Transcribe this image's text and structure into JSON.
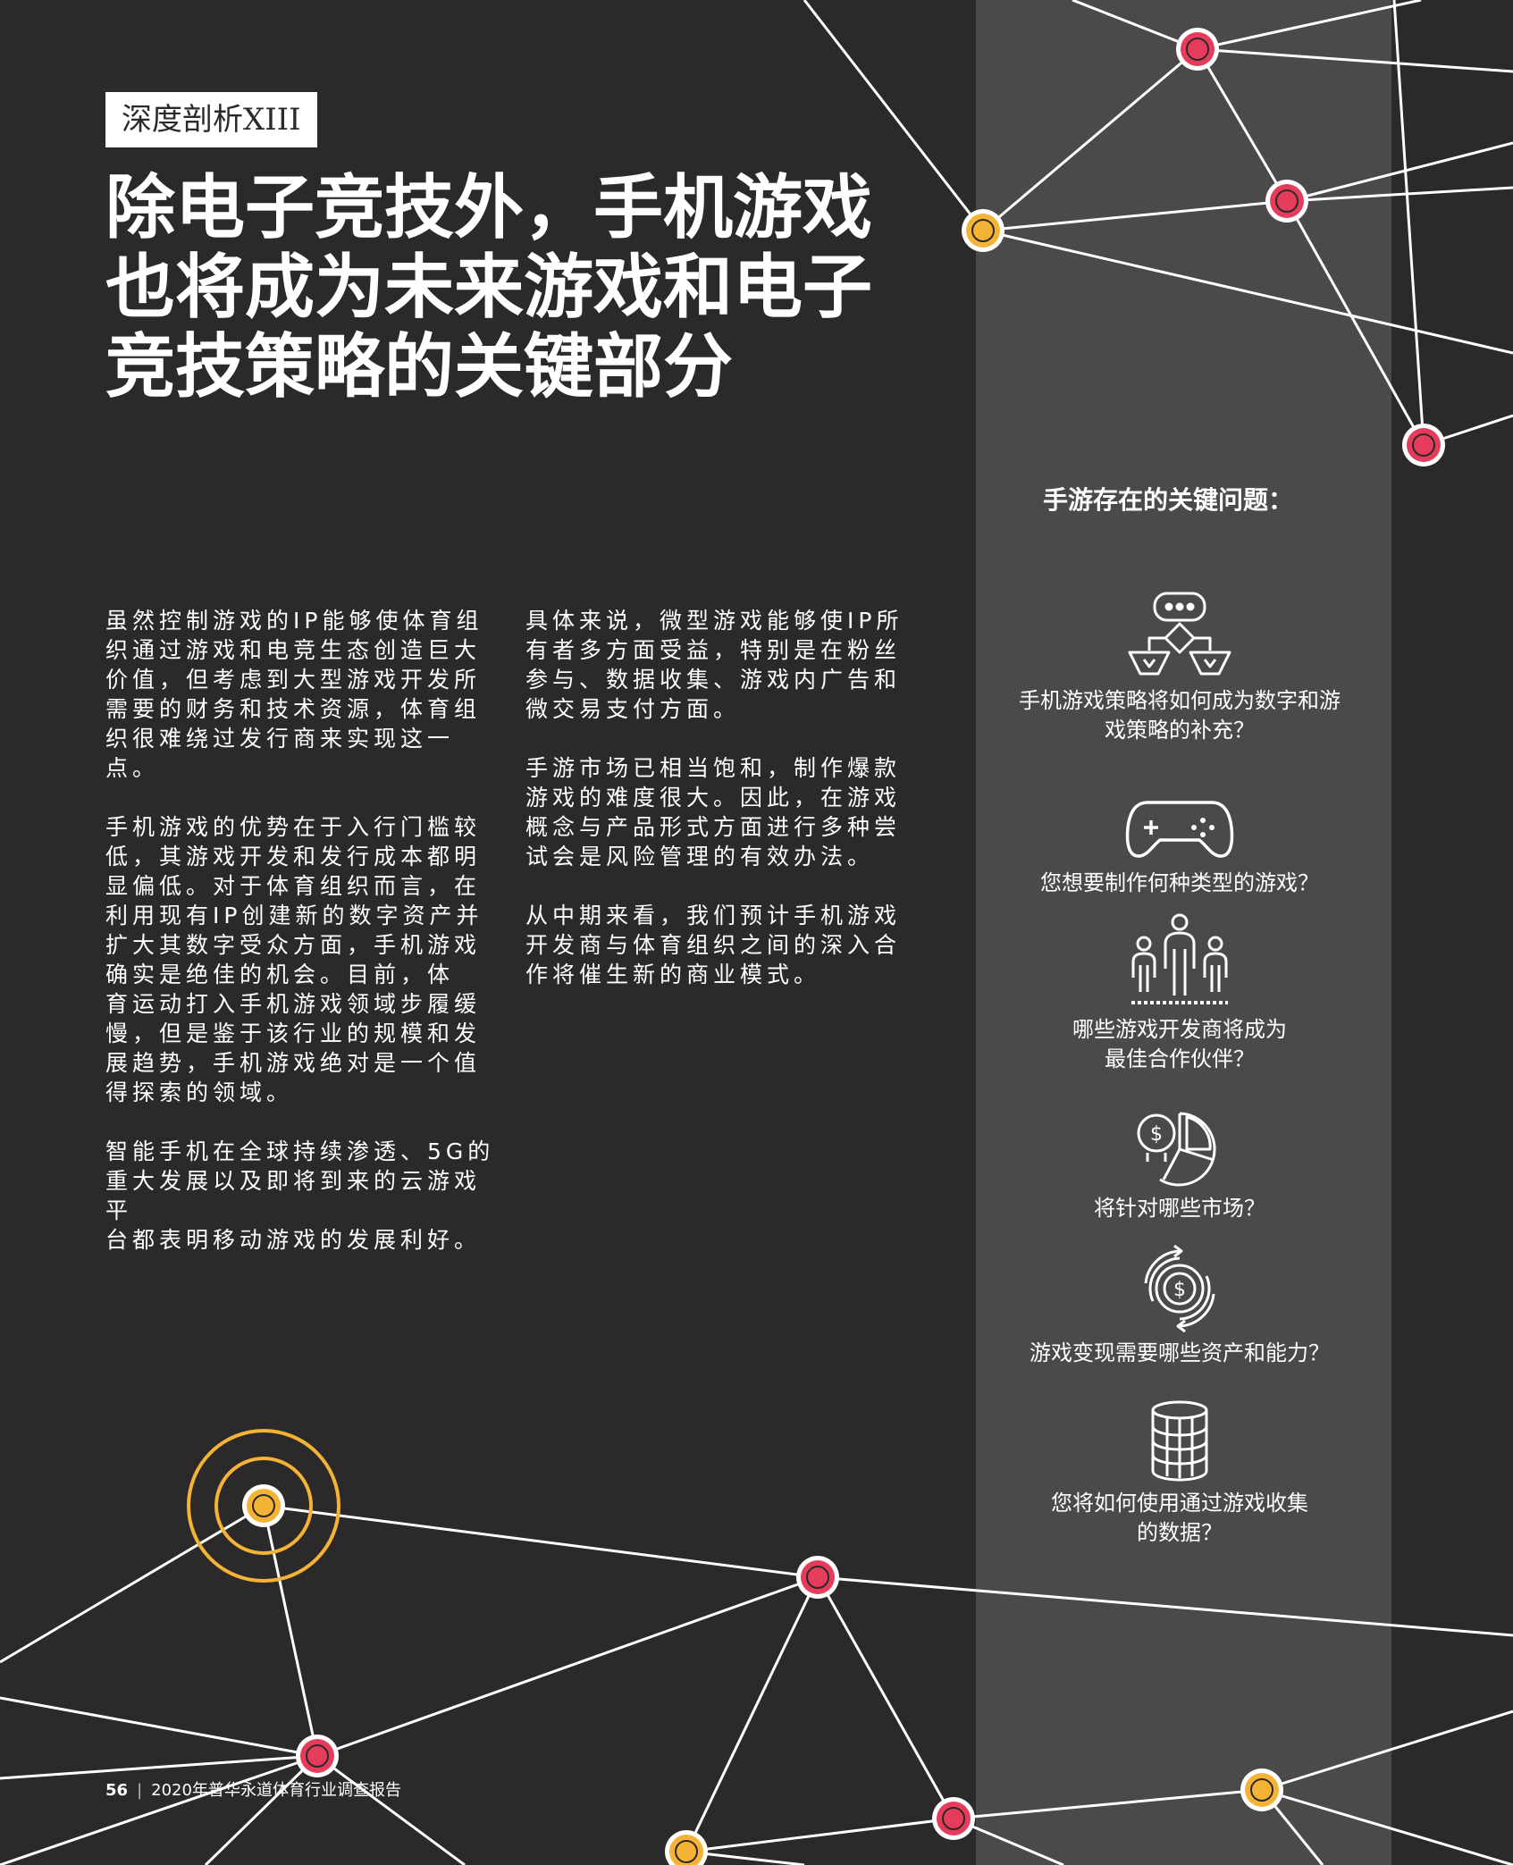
{
  "colors": {
    "background": "#2b292a",
    "panel": "#4b494a",
    "node_red": "#e63c5c",
    "node_yellow": "#f5b335",
    "line": "#ffffff"
  },
  "tag": "深度剖析XIII",
  "headline": {
    "lines": [
      "除电子竞技外，手机游戏",
      "也将成为未来游戏和电子",
      "竞技策略的关键部分"
    ]
  },
  "column1": {
    "paragraphs": [
      [
        "虽然控制游戏的IP能够使体育组",
        "织通过游戏和电竞生态创造巨大",
        "价值，但考虑到大型游戏开发所",
        "需要的财务和技术资源，体育组",
        "织很难绕过发行商来实现这一",
        "点。"
      ],
      [
        "手机游戏的优势在于入行门槛较",
        "低，其游戏开发和发行成本都明",
        "显偏低。对于体育组织而言，在",
        "利用现有IP创建新的数字资产并",
        "扩大其数字受众方面，手机游戏",
        "确实是绝佳的机会。目前，体",
        "育运动打入手机游戏领域步履缓",
        "慢，但是鉴于该行业的规模和发",
        "展趋势，手机游戏绝对是一个值",
        "得探索的领域。"
      ],
      [
        "智能手机在全球持续渗透、5G的",
        "重大发展以及即将到来的云游戏平",
        "台都表明移动游戏的发展利好。"
      ]
    ]
  },
  "column2": {
    "paragraphs": [
      [
        "具体来说，微型游戏能够使IP所",
        "有者多方面受益，特别是在粉丝",
        "参与、数据收集、游戏内广告和",
        "微交易支付方面。"
      ],
      [
        "手游市场已相当饱和，制作爆款",
        "游戏的难度很大。因此，在游戏",
        "概念与产品形式方面进行多种尝",
        "试会是风险管理的有效办法。"
      ],
      [
        "从中期来看，我们预计手机游戏",
        "开发商与体育组织之间的深入合",
        "作将催生新的商业模式。"
      ]
    ]
  },
  "panel": {
    "title": "手游存在的关键问题：",
    "items": [
      {
        "icon": "strategy-flow-icon",
        "lines": [
          "手机游戏策略将如何成为数字和游",
          "戏策略的补充？"
        ]
      },
      {
        "icon": "gamepad-icon",
        "lines": [
          "您想要制作何种类型的游戏？"
        ]
      },
      {
        "icon": "people-group-icon",
        "lines": [
          "哪些游戏开发商将成为",
          "最佳合作伙伴？"
        ]
      },
      {
        "icon": "market-pie-icon",
        "lines": [
          "将针对哪些市场？"
        ]
      },
      {
        "icon": "monetization-cycle-icon",
        "lines": [
          "游戏变现需要哪些资产和能力？"
        ]
      },
      {
        "icon": "database-icon",
        "lines": [
          "您将如何使用通过游戏收集",
          "的数据？"
        ]
      }
    ]
  },
  "footer": {
    "page_number": "56",
    "separator": "|",
    "report_title": "2020年普华永道体育行业调查报告"
  }
}
